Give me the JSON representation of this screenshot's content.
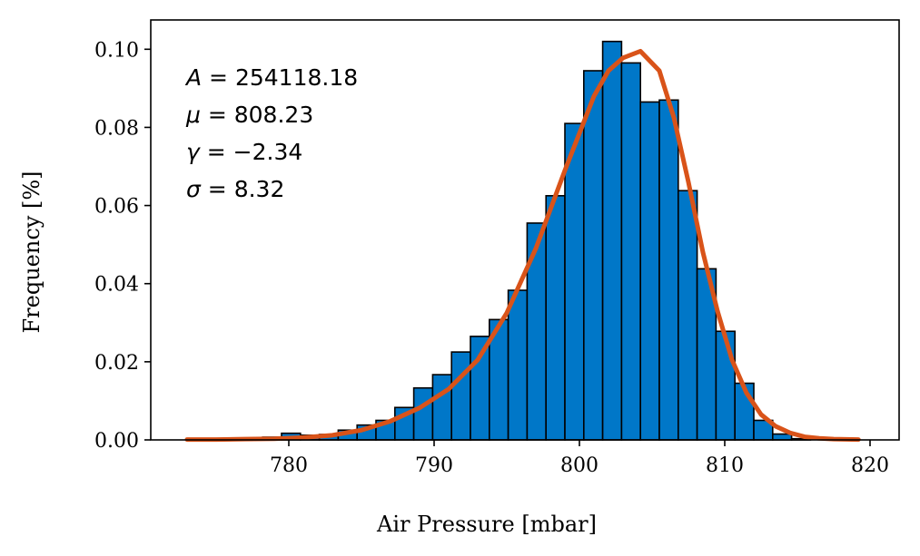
{
  "chart_data": {
    "type": "bar",
    "xlabel": "Air Pressure [mbar]",
    "ylabel": "Frequency [%]",
    "xlim": [
      770.5,
      822
    ],
    "ylim": [
      0,
      0.1075
    ],
    "xticks": [
      780,
      790,
      800,
      810,
      820
    ],
    "yticks": [
      0.0,
      0.02,
      0.04,
      0.06,
      0.08,
      0.1
    ],
    "ytick_labels": [
      "0.00",
      "0.02",
      "0.04",
      "0.06",
      "0.08",
      "0.10"
    ],
    "bar_color": "#0077c8",
    "bar_edge_color": "#000000",
    "line_color": "#d95319",
    "grid": false,
    "bins": {
      "edges": [
        773.0,
        774.3,
        775.6,
        776.9,
        778.2,
        779.5,
        780.8,
        782.1,
        783.4,
        784.7,
        786.0,
        787.3,
        788.6,
        789.9,
        791.2,
        792.5,
        793.8,
        795.1,
        796.4,
        797.7,
        799.0,
        800.3,
        801.6,
        802.9,
        804.2,
        805.5,
        806.8,
        808.1,
        809.4,
        810.7,
        812.0,
        813.3,
        814.6,
        815.9
      ],
      "values": [
        0.0002,
        0.0003,
        0.0003,
        0.0005,
        0.0007,
        0.0017,
        0.0012,
        0.0014,
        0.0025,
        0.0038,
        0.005,
        0.0083,
        0.0133,
        0.0167,
        0.0225,
        0.0265,
        0.0308,
        0.0383,
        0.0555,
        0.0625,
        0.081,
        0.0945,
        0.102,
        0.0965,
        0.0865,
        0.087,
        0.0638,
        0.0438,
        0.0278,
        0.0145,
        0.005,
        0.0015,
        0.0003
      ]
    },
    "fit_curve": {
      "x": [
        773.0,
        775.0,
        777.0,
        779.0,
        781.0,
        783.0,
        785.0,
        787.0,
        789.0,
        791.0,
        793.0,
        795.0,
        797.0,
        799.0,
        801.0,
        802.0,
        803.0,
        804.2,
        805.5,
        806.5,
        807.5,
        808.5,
        809.5,
        810.5,
        811.5,
        812.5,
        813.5,
        814.5,
        815.5,
        816.5,
        817.5,
        819.2
      ],
      "y": [
        0.0001,
        0.0001,
        0.0002,
        0.0003,
        0.0006,
        0.0012,
        0.0025,
        0.0048,
        0.0082,
        0.013,
        0.0205,
        0.0325,
        0.049,
        0.069,
        0.088,
        0.0945,
        0.0978,
        0.0995,
        0.0945,
        0.0825,
        0.066,
        0.048,
        0.033,
        0.0205,
        0.012,
        0.0065,
        0.0035,
        0.0018,
        0.0008,
        0.0004,
        0.0002,
        0.0001
      ]
    },
    "annotations": [
      {
        "symbol": "A",
        "text": "= 254118.18"
      },
      {
        "symbol": "μ",
        "text": "= 808.23"
      },
      {
        "symbol": "γ",
        "text": "= −2.34"
      },
      {
        "symbol": "σ",
        "text": "= 8.32"
      }
    ]
  }
}
